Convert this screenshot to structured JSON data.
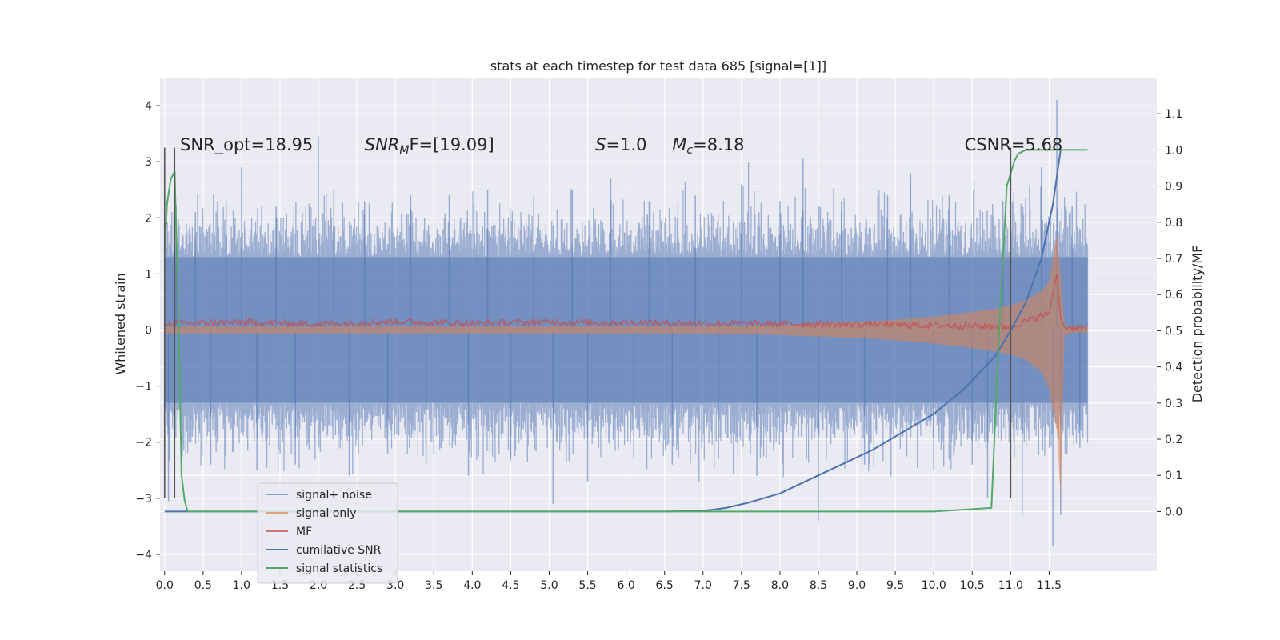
{
  "chart_data": {
    "type": "line",
    "title": "stats at each timestep for test data 685 [signal=[1]]",
    "ylabel": "Whitened strain",
    "y2label": "Detection probability/MF",
    "xlim": [
      -0.06,
      12.9
    ],
    "ylim": [
      -4.3,
      4.5
    ],
    "y2lim": [
      -0.165,
      1.2
    ],
    "xticks": [
      0.0,
      0.5,
      1.0,
      1.5,
      2.0,
      2.5,
      3.0,
      3.5,
      4.0,
      4.5,
      5.0,
      5.5,
      6.0,
      6.5,
      7.0,
      7.5,
      8.0,
      8.5,
      9.0,
      9.5,
      10.0,
      10.5,
      11.0,
      11.5
    ],
    "xtick_labels": [
      "0.0",
      "0.5",
      "1.0",
      "1.5",
      "2.0",
      "2.5",
      "3.0",
      "3.5",
      "4.0",
      "4.5",
      "5.0",
      "5.5",
      "6.0",
      "6.5",
      "7.0",
      "7.5",
      "8.0",
      "8.5",
      "9.0",
      "9.5",
      "10.0",
      "10.5",
      "11.0",
      "11.5"
    ],
    "yticks": [
      -4,
      -3,
      -2,
      -1,
      0,
      1,
      2,
      3,
      4
    ],
    "ytick_labels": [
      "−4",
      "−3",
      "−2",
      "−1",
      "0",
      "1",
      "2",
      "3",
      "4"
    ],
    "y2ticks": [
      0.0,
      0.1,
      0.2,
      0.3,
      0.4,
      0.5,
      0.6,
      0.7,
      0.8,
      0.9,
      1.0,
      1.1
    ],
    "y2tick_labels": [
      "0.0",
      "0.1",
      "0.2",
      "0.3",
      "0.4",
      "0.5",
      "0.6",
      "0.7",
      "0.8",
      "0.9",
      "1.0",
      "1.1"
    ],
    "grid": true,
    "legend_position": "lower-left",
    "annotations": [
      {
        "text": "SNR_opt=18.95",
        "x": 0.2,
        "y": 3.2
      },
      {
        "text_main": "SNR",
        "text_sub": "M",
        "text_rest": "F=[19.09]",
        "x": 2.6,
        "y": 3.2
      },
      {
        "text_main": "S",
        "text_rest": "=1.0",
        "x": 5.6,
        "y": 3.2
      },
      {
        "text_main": "M",
        "text_sub": "c",
        "text_rest": "=8.18",
        "x": 6.6,
        "y": 3.2
      },
      {
        "text": "CSNR=5.68",
        "x": 10.4,
        "y": 3.2
      }
    ],
    "vertical_markers": [
      {
        "x": 0.0,
        "y_from": -3.0,
        "y_to": 3.25
      },
      {
        "x": 0.13,
        "y_from": -3.0,
        "y_to": 3.25
      },
      {
        "x": 11.0,
        "y_from": -3.0,
        "y_to": 3.25
      }
    ],
    "series": [
      {
        "name": "signal+ noise",
        "color": "#4C72B0",
        "kind": "noisy-band",
        "band_x": [
          0.0,
          12.0
        ],
        "band_low": -1.3,
        "band_high": 1.3,
        "spikes": [
          {
            "x": 0.05,
            "y": -3.05
          },
          {
            "x": 0.15,
            "y": 2.2
          },
          {
            "x": 0.4,
            "y": 2.1
          },
          {
            "x": 0.6,
            "y": -2.4
          },
          {
            "x": 0.8,
            "y": 2.3
          },
          {
            "x": 1.0,
            "y": 2.9
          },
          {
            "x": 1.2,
            "y": -2.5
          },
          {
            "x": 1.45,
            "y": 2.2
          },
          {
            "x": 1.7,
            "y": -2.4
          },
          {
            "x": 2.0,
            "y": 3.45
          },
          {
            "x": 2.2,
            "y": 2.5
          },
          {
            "x": 2.4,
            "y": -2.6
          },
          {
            "x": 2.6,
            "y": 2.3
          },
          {
            "x": 2.9,
            "y": -2.2
          },
          {
            "x": 3.2,
            "y": 2.4
          },
          {
            "x": 3.4,
            "y": -2.4
          },
          {
            "x": 3.7,
            "y": 2.4
          },
          {
            "x": 3.95,
            "y": -2.6
          },
          {
            "x": 4.2,
            "y": 2.5
          },
          {
            "x": 4.5,
            "y": -2.3
          },
          {
            "x": 4.8,
            "y": 2.4
          },
          {
            "x": 5.05,
            "y": -3.1
          },
          {
            "x": 5.3,
            "y": 2.5
          },
          {
            "x": 5.5,
            "y": -2.7
          },
          {
            "x": 5.8,
            "y": 2.7
          },
          {
            "x": 6.1,
            "y": -2.3
          },
          {
            "x": 6.3,
            "y": 2.3
          },
          {
            "x": 6.6,
            "y": -2.4
          },
          {
            "x": 6.9,
            "y": 2.4
          },
          {
            "x": 7.2,
            "y": -2.3
          },
          {
            "x": 7.5,
            "y": 2.6
          },
          {
            "x": 7.7,
            "y": -2.6
          },
          {
            "x": 8.0,
            "y": 2.3
          },
          {
            "x": 8.3,
            "y": 3.05
          },
          {
            "x": 8.5,
            "y": -3.4
          },
          {
            "x": 8.8,
            "y": 2.3
          },
          {
            "x": 9.1,
            "y": -2.4
          },
          {
            "x": 9.4,
            "y": 2.4
          },
          {
            "x": 9.7,
            "y": 2.8
          },
          {
            "x": 10.0,
            "y": -2.5
          },
          {
            "x": 10.2,
            "y": 2.4
          },
          {
            "x": 10.5,
            "y": -2.4
          },
          {
            "x": 10.7,
            "y": -3.0
          },
          {
            "x": 10.9,
            "y": 2.3
          },
          {
            "x": 11.15,
            "y": -3.3
          },
          {
            "x": 11.4,
            "y": 2.9
          },
          {
            "x": 11.55,
            "y": -3.85
          },
          {
            "x": 11.6,
            "y": 4.1
          },
          {
            "x": 11.65,
            "y": -3.3
          },
          {
            "x": 11.8,
            "y": 2.2
          },
          {
            "x": 11.9,
            "y": -2.1
          }
        ]
      },
      {
        "name": "signal only",
        "color": "#DD8452",
        "kind": "chirp-envelope",
        "x": [
          0.0,
          7.0,
          8.0,
          9.0,
          9.5,
          10.0,
          10.5,
          10.8,
          11.0,
          11.2,
          11.4,
          11.5,
          11.6,
          11.65,
          11.7,
          11.8,
          12.0
        ],
        "upper": [
          0.06,
          0.06,
          0.09,
          0.14,
          0.18,
          0.24,
          0.32,
          0.38,
          0.44,
          0.53,
          0.7,
          0.85,
          1.7,
          1.0,
          0.1,
          0.05,
          0.05
        ],
        "lower": [
          -0.06,
          -0.06,
          -0.09,
          -0.14,
          -0.18,
          -0.24,
          -0.32,
          -0.38,
          -0.44,
          -0.53,
          -0.75,
          -1.05,
          -1.8,
          -3.0,
          -0.1,
          -0.05,
          -0.05
        ]
      },
      {
        "name": "MF",
        "color": "#C44E52",
        "kind": "line",
        "axis": "left",
        "x": [
          0.0,
          1.0,
          2.0,
          3.0,
          4.0,
          5.0,
          6.0,
          7.0,
          8.0,
          9.0,
          10.0,
          11.0,
          11.5,
          11.6,
          11.65,
          11.7,
          12.0
        ],
        "y": [
          0.12,
          0.14,
          0.11,
          0.15,
          0.12,
          0.14,
          0.13,
          0.12,
          0.11,
          0.1,
          0.08,
          0.06,
          0.3,
          1.0,
          0.2,
          0.05,
          0.04
        ]
      },
      {
        "name": "cumilative SNR",
        "color": "#4C72B0",
        "kind": "line",
        "axis": "right",
        "x": [
          0.0,
          1.0,
          3.0,
          5.0,
          6.0,
          6.5,
          7.0,
          7.3,
          7.6,
          8.0,
          8.4,
          8.8,
          9.2,
          9.6,
          10.0,
          10.4,
          10.8,
          11.0,
          11.2,
          11.4,
          11.55,
          11.65
        ],
        "y": [
          0.0,
          0.0,
          0.0,
          0.0,
          0.0,
          0.0,
          0.002,
          0.01,
          0.025,
          0.05,
          0.09,
          0.13,
          0.17,
          0.22,
          0.27,
          0.34,
          0.43,
          0.5,
          0.58,
          0.7,
          0.85,
          1.0
        ]
      },
      {
        "name": "signal statistics",
        "color": "#55A868",
        "kind": "line",
        "axis": "right",
        "x": [
          0.0,
          0.03,
          0.08,
          0.13,
          0.18,
          0.22,
          0.26,
          0.3,
          1.0,
          5.0,
          10.0,
          10.75,
          10.85,
          10.95,
          11.05,
          11.1,
          11.2,
          11.3,
          12.0
        ],
        "y": [
          0.72,
          0.85,
          0.92,
          0.94,
          0.55,
          0.1,
          0.03,
          0.0,
          0.0,
          0.0,
          0.0,
          0.01,
          0.5,
          0.9,
          0.97,
          0.99,
          1.0,
          1.0,
          1.0
        ]
      }
    ]
  }
}
